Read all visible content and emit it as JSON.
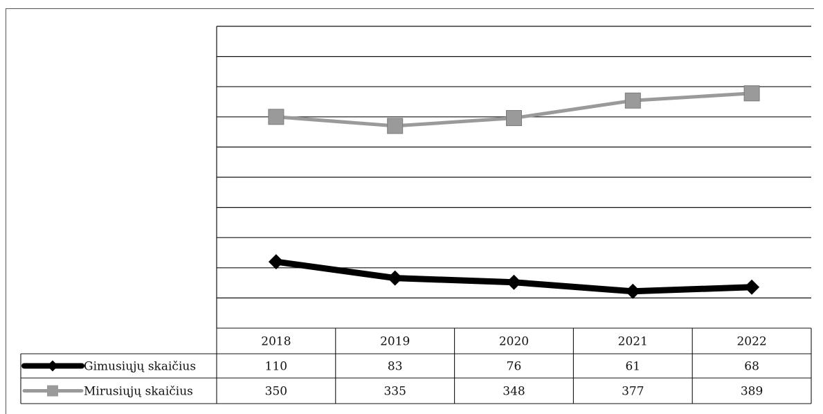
{
  "chart_data": {
    "type": "line",
    "title": "",
    "xlabel": "",
    "ylabel": "",
    "categories": [
      "2018",
      "2019",
      "2020",
      "2021",
      "2022"
    ],
    "ylim": [
      0,
      500
    ],
    "grid": true,
    "legend_placement": "left of data table",
    "series": [
      {
        "name": "Gimusiųjų skaičius",
        "values": [
          110,
          83,
          76,
          61,
          68
        ],
        "color": "#000000",
        "marker": "diamond"
      },
      {
        "name": "Mirusiųjų skaičius",
        "values": [
          350,
          335,
          348,
          377,
          389
        ],
        "color": "#9a9a9a",
        "marker": "square"
      }
    ]
  }
}
